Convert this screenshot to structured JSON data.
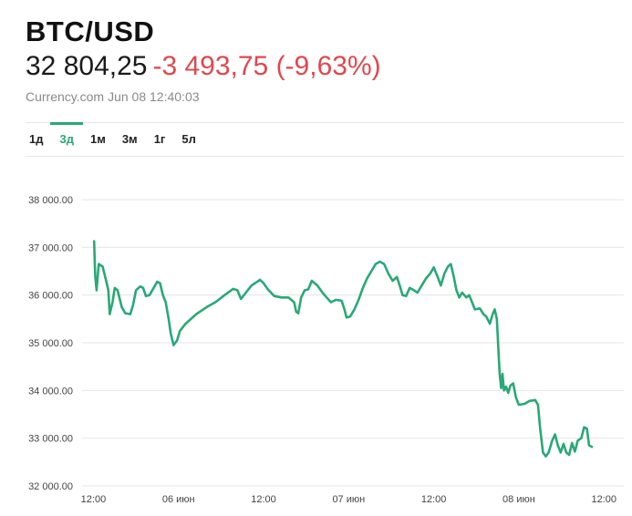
{
  "header": {
    "symbol": "BTC/USD",
    "price": "32 804,25",
    "change": "-3 493,75 (-9,63%)",
    "source": "Currency.com",
    "timestamp": "Jun 08 12:40:03"
  },
  "tabs": [
    {
      "label": "1д",
      "active": false
    },
    {
      "label": "3д",
      "active": true
    },
    {
      "label": "1м",
      "active": false
    },
    {
      "label": "3м",
      "active": false
    },
    {
      "label": "1г",
      "active": false
    },
    {
      "label": "5л",
      "active": false
    }
  ],
  "colors": {
    "line": "#2aa876",
    "negative": "#e0474f",
    "active_tab": "#2aa876"
  },
  "chart_data": {
    "type": "line",
    "title": "",
    "xlabel": "",
    "ylabel": "",
    "ylim": [
      32000,
      38000
    ],
    "y_ticks": [
      32000,
      33000,
      34000,
      35000,
      36000,
      37000,
      38000
    ],
    "y_tick_labels": [
      "32 000.00",
      "33 000.00",
      "34 000.00",
      "35 000.00",
      "36 000.00",
      "37 000.00",
      "38 000.00"
    ],
    "x_range_hours": [
      -1.6,
      74.8
    ],
    "x_ticks": [
      0,
      12,
      24,
      36,
      48,
      60,
      72
    ],
    "x_tick_labels": [
      "12:00",
      "06 июн",
      "12:00",
      "07 июн",
      "12:00",
      "08 июн",
      "12:00"
    ],
    "grid": true,
    "series": [
      {
        "values": [
          [
            0.1,
            37130
          ],
          [
            0.25,
            36400
          ],
          [
            0.45,
            36100
          ],
          [
            0.75,
            36650
          ],
          [
            1.3,
            36600
          ],
          [
            1.8,
            36300
          ],
          [
            2.1,
            36100
          ],
          [
            2.3,
            35600
          ],
          [
            2.7,
            35850
          ],
          [
            3.0,
            36150
          ],
          [
            3.4,
            36100
          ],
          [
            4.0,
            35750
          ],
          [
            4.5,
            35620
          ],
          [
            5.2,
            35600
          ],
          [
            5.6,
            35800
          ],
          [
            6.0,
            36100
          ],
          [
            6.6,
            36180
          ],
          [
            7.0,
            36150
          ],
          [
            7.4,
            35980
          ],
          [
            7.9,
            36000
          ],
          [
            8.5,
            36150
          ],
          [
            9.0,
            36280
          ],
          [
            9.4,
            36250
          ],
          [
            9.8,
            36000
          ],
          [
            10.2,
            35850
          ],
          [
            10.6,
            35500
          ],
          [
            10.9,
            35200
          ],
          [
            11.3,
            34950
          ],
          [
            11.8,
            35050
          ],
          [
            12.2,
            35250
          ],
          [
            13.0,
            35400
          ],
          [
            14.5,
            35600
          ],
          [
            16.0,
            35750
          ],
          [
            17.2,
            35850
          ],
          [
            18.5,
            36000
          ],
          [
            19.7,
            36130
          ],
          [
            20.3,
            36100
          ],
          [
            20.8,
            35920
          ],
          [
            21.5,
            36050
          ],
          [
            22.3,
            36200
          ],
          [
            23.5,
            36320
          ],
          [
            24.0,
            36250
          ],
          [
            24.6,
            36120
          ],
          [
            25.5,
            35980
          ],
          [
            26.5,
            35950
          ],
          [
            27.5,
            35950
          ],
          [
            28.3,
            35850
          ],
          [
            28.6,
            35650
          ],
          [
            28.9,
            35620
          ],
          [
            29.3,
            35950
          ],
          [
            29.8,
            36100
          ],
          [
            30.3,
            36120
          ],
          [
            30.8,
            36300
          ],
          [
            31.6,
            36200
          ],
          [
            32.3,
            36050
          ],
          [
            32.9,
            35950
          ],
          [
            33.5,
            35850
          ],
          [
            34.2,
            35900
          ],
          [
            35.0,
            35880
          ],
          [
            35.4,
            35700
          ],
          [
            35.7,
            35530
          ],
          [
            36.2,
            35550
          ],
          [
            36.8,
            35700
          ],
          [
            37.4,
            35900
          ],
          [
            38.0,
            36150
          ],
          [
            38.6,
            36350
          ],
          [
            39.2,
            36500
          ],
          [
            39.8,
            36650
          ],
          [
            40.4,
            36700
          ],
          [
            41.0,
            36650
          ],
          [
            41.6,
            36450
          ],
          [
            42.2,
            36300
          ],
          [
            42.8,
            36380
          ],
          [
            43.2,
            36200
          ],
          [
            43.6,
            36000
          ],
          [
            44.1,
            35980
          ],
          [
            44.6,
            36150
          ],
          [
            45.2,
            36100
          ],
          [
            45.7,
            36050
          ],
          [
            46.3,
            36200
          ],
          [
            46.9,
            36350
          ],
          [
            47.5,
            36450
          ],
          [
            48.0,
            36580
          ],
          [
            48.5,
            36400
          ],
          [
            49.0,
            36200
          ],
          [
            49.5,
            36450
          ],
          [
            50.0,
            36600
          ],
          [
            50.4,
            36650
          ],
          [
            50.8,
            36400
          ],
          [
            51.2,
            36100
          ],
          [
            51.6,
            35950
          ],
          [
            52.0,
            36050
          ],
          [
            52.6,
            35950
          ],
          [
            53.0,
            36000
          ],
          [
            53.4,
            35850
          ],
          [
            53.8,
            35700
          ],
          [
            54.5,
            35720
          ],
          [
            55.0,
            35600
          ],
          [
            55.4,
            35550
          ],
          [
            55.9,
            35400
          ],
          [
            56.3,
            35600
          ],
          [
            56.6,
            35700
          ],
          [
            56.9,
            35500
          ],
          [
            57.1,
            34900
          ],
          [
            57.3,
            34350
          ],
          [
            57.5,
            34050
          ],
          [
            57.7,
            34350
          ],
          [
            57.9,
            34000
          ],
          [
            58.2,
            34080
          ],
          [
            58.5,
            33950
          ],
          [
            58.8,
            34100
          ],
          [
            59.2,
            34150
          ],
          [
            59.6,
            33850
          ],
          [
            60.0,
            33700
          ],
          [
            60.8,
            33720
          ],
          [
            61.5,
            33780
          ],
          [
            62.3,
            33800
          ],
          [
            62.7,
            33700
          ],
          [
            63.0,
            33200
          ],
          [
            63.4,
            32700
          ],
          [
            63.8,
            32620
          ],
          [
            64.2,
            32700
          ],
          [
            64.7,
            32950
          ],
          [
            65.1,
            33080
          ],
          [
            65.5,
            32850
          ],
          [
            65.9,
            32700
          ],
          [
            66.3,
            32880
          ],
          [
            66.7,
            32700
          ],
          [
            67.1,
            32650
          ],
          [
            67.5,
            32900
          ],
          [
            67.9,
            32720
          ],
          [
            68.3,
            32950
          ],
          [
            68.8,
            33000
          ],
          [
            69.2,
            33230
          ],
          [
            69.6,
            33200
          ],
          [
            69.9,
            32850
          ],
          [
            70.3,
            32820
          ]
        ]
      }
    ]
  }
}
